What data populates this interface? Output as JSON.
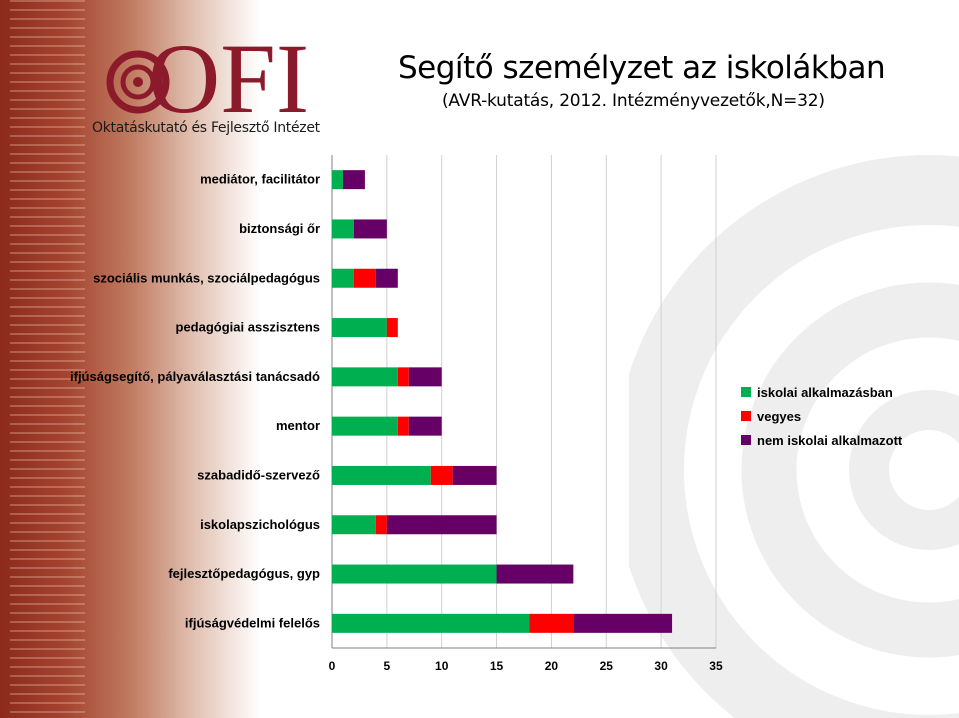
{
  "header": {
    "logo_text": "OFI",
    "logo_caption": "Oktatáskutató és Fejlesztő Intézet",
    "title": "Segítő személyzet az iskolákban",
    "subtitle": "(AVR-kutatás, 2012. Intézményvezetők,N=32)"
  },
  "colors": {
    "brand": "#8b1a2b",
    "left_band": "#a4442f"
  },
  "chart_data": {
    "type": "bar",
    "orientation": "horizontal",
    "stacked": true,
    "categories": [
      "mediátor, facilitátor",
      "biztonsági őr",
      "szociális munkás, szociálpedagógus",
      "pedagógiai asszisztens",
      "ifjúságsegítő, pályaválasztási tanácsadó",
      "mentor",
      "szabadidő-szervező",
      "iskolapszichológus",
      "fejlesztőpedagógus, gyp",
      "ifjúságvédelmi felelős"
    ],
    "series": [
      {
        "name": "iskolai alkalmazásban",
        "color": "#00b050",
        "values": [
          1,
          2,
          2,
          5,
          6,
          6,
          9,
          4,
          15,
          18
        ]
      },
      {
        "name": "vegyes",
        "color": "#ff0000",
        "values": [
          0,
          0,
          2,
          1,
          1,
          1,
          2,
          1,
          0,
          4
        ]
      },
      {
        "name": "nem iskolai alkalmazott",
        "color": "#660066",
        "values": [
          2,
          3,
          2,
          0,
          3,
          3,
          4,
          10,
          7,
          9
        ]
      }
    ],
    "xlim": [
      0,
      35
    ],
    "xticks": [
      0,
      5,
      10,
      15,
      20,
      25,
      30,
      35
    ],
    "grid": true,
    "legend_position": "right"
  }
}
